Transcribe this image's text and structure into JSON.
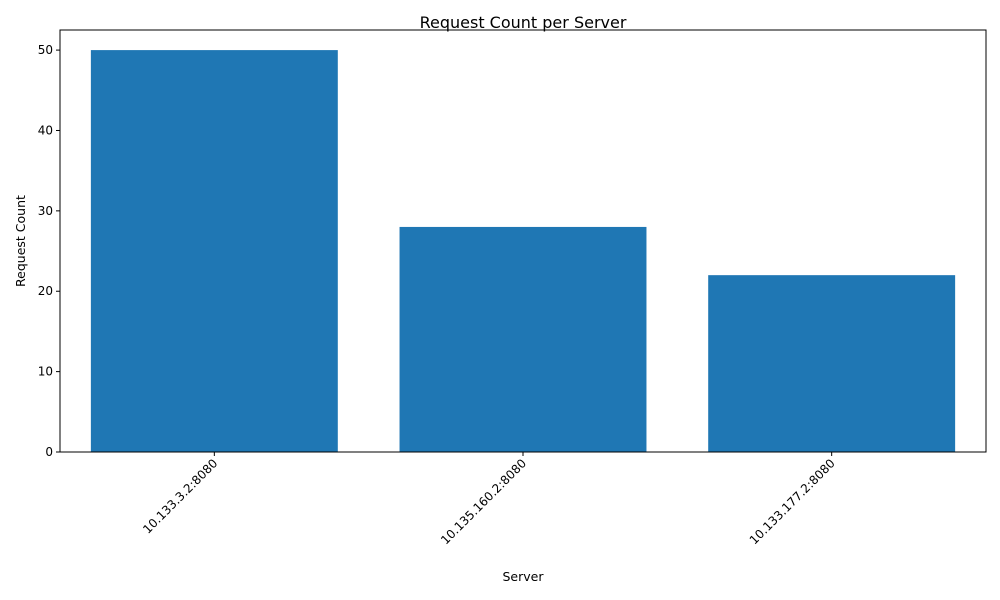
{
  "chart_data": {
    "type": "bar",
    "title": "Request Count per Server",
    "xlabel": "Server",
    "ylabel": "Request Count",
    "categories": [
      "10.133.3.2:8080",
      "10.135.160.2:8080",
      "10.133.177.2:8080"
    ],
    "values": [
      50,
      28,
      22
    ],
    "ylim": [
      0,
      52.5
    ],
    "yticks": [
      0,
      10,
      20,
      30,
      40,
      50
    ],
    "bar_color": "#1f77b4",
    "grid": false,
    "xtick_rotation": 45
  }
}
